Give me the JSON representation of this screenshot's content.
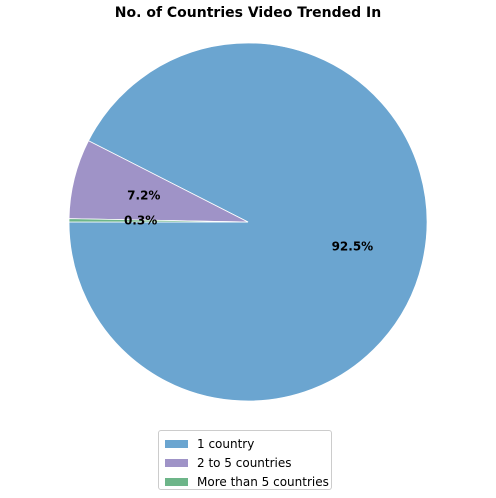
{
  "chart_data": {
    "type": "pie",
    "title": "No. of Countries Video Trended In",
    "categories": [
      "1 country",
      "2 to 5 countries",
      "More than 5 countries"
    ],
    "values": [
      92.5,
      7.2,
      0.3
    ],
    "labels": [
      "92.5%",
      "7.2%",
      "0.3%"
    ],
    "colors": [
      "#6ba5d0",
      "#9f93c7",
      "#6db589"
    ],
    "legend_position": "bottom-center"
  }
}
